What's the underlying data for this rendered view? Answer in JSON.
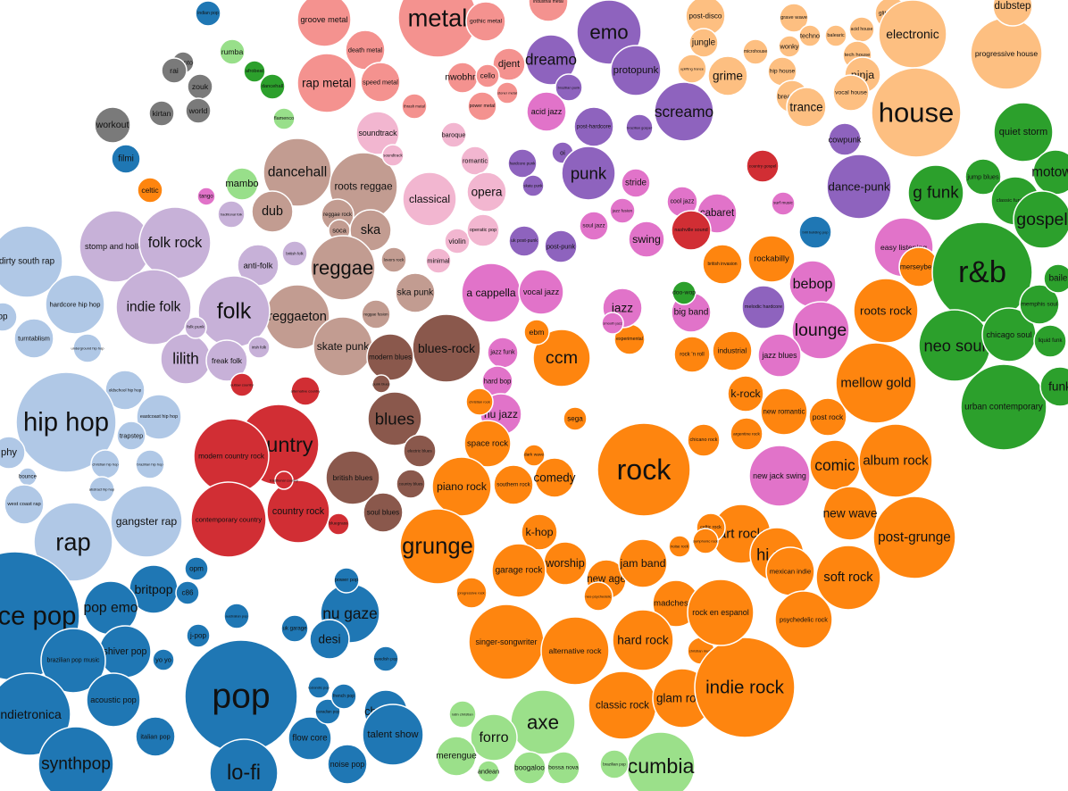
{
  "colors": {
    "metal": "#f4928f",
    "emo_punk": "#8e63be",
    "electronic": "#fdbf81",
    "world": "#7a7a7a",
    "reggae": "#c29c91",
    "soft_pink": "#f2b6d0",
    "magenta": "#e173c9",
    "folk": "#c7b1d8",
    "hiphop": "#b0c8e6",
    "country": "#d12e34",
    "blues": "#8a584c",
    "rock": "#fe850f",
    "rnb": "#2ca02c",
    "pop": "#1f77b4",
    "latin": "#9be08a",
    "ltgreen": "#98df8a"
  },
  "bubbles": [
    {
      "label": "groove metal",
      "g": "metal"
    },
    {
      "label": "metal",
      "g": "metal"
    },
    {
      "label": "gothic metal",
      "g": "metal"
    },
    {
      "label": "industrial metal",
      "g": "metal"
    },
    {
      "label": "death metal",
      "g": "metal"
    },
    {
      "label": "djent",
      "g": "metal"
    },
    {
      "label": "nwobhm",
      "g": "metal"
    },
    {
      "label": "cello",
      "g": "metal"
    },
    {
      "label": "rap metal",
      "g": "metal"
    },
    {
      "label": "speed metal",
      "g": "metal"
    },
    {
      "label": "thrash metal",
      "g": "metal"
    },
    {
      "label": "power metal",
      "g": "metal"
    },
    {
      "label": "stoner metal",
      "g": "metal"
    },
    {
      "label": "emo",
      "g": "emo_punk"
    },
    {
      "label": "dreamo",
      "g": "emo_punk"
    },
    {
      "label": "brazilian punk",
      "g": "emo_punk"
    },
    {
      "label": "protopunk",
      "g": "emo_punk"
    },
    {
      "label": "screamo",
      "g": "emo_punk"
    },
    {
      "label": "acid jazz",
      "g": "magenta"
    },
    {
      "label": "post-hardcore",
      "g": "emo_punk"
    },
    {
      "label": "brazilian gospel",
      "g": "emo_punk"
    },
    {
      "label": "oi",
      "g": "emo_punk"
    },
    {
      "label": "punk",
      "g": "emo_punk"
    },
    {
      "label": "hardcore punk",
      "g": "emo_punk"
    },
    {
      "label": "skate punk",
      "g": "emo_punk"
    },
    {
      "label": "uk post-punk",
      "g": "emo_punk"
    },
    {
      "label": "post-punk",
      "g": "emo_punk"
    },
    {
      "label": "dance-punk",
      "g": "emo_punk"
    },
    {
      "label": "cowpunk",
      "g": "emo_punk"
    },
    {
      "label": "melodic hardcore",
      "g": "emo_punk"
    },
    {
      "label": "post-disco",
      "g": "electronic"
    },
    {
      "label": "jungle",
      "g": "electronic"
    },
    {
      "label": "uplifting trance",
      "g": "electronic"
    },
    {
      "label": "microhouse",
      "g": "electronic"
    },
    {
      "label": "grave wave",
      "g": "electronic"
    },
    {
      "label": "wonky",
      "g": "electronic"
    },
    {
      "label": "techno",
      "g": "electronic"
    },
    {
      "label": "balearic",
      "g": "electronic"
    },
    {
      "label": "acid house",
      "g": "electronic"
    },
    {
      "label": "tech house",
      "g": "electronic"
    },
    {
      "label": "glitch hop",
      "g": "electronic"
    },
    {
      "label": "ninja",
      "g": "electronic"
    },
    {
      "label": "electronic",
      "g": "electronic"
    },
    {
      "label": "progressive house",
      "g": "electronic"
    },
    {
      "label": "grime",
      "g": "electronic"
    },
    {
      "label": "hip house",
      "g": "electronic"
    },
    {
      "label": "breakbeat",
      "g": "electronic"
    },
    {
      "label": "vocal house",
      "g": "electronic"
    },
    {
      "label": "trance",
      "g": "electronic"
    },
    {
      "label": "house",
      "g": "electronic"
    },
    {
      "label": "dubstep",
      "g": "electronic"
    },
    {
      "label": "indian pop",
      "g": "pop"
    },
    {
      "label": "rumba",
      "g": "ltgreen"
    },
    {
      "label": "afrobeat",
      "g": "rnb"
    },
    {
      "label": "dancehall",
      "g": "rnb"
    },
    {
      "label": "flamenco",
      "g": "ltgreen"
    },
    {
      "label": "azonto",
      "g": "world"
    },
    {
      "label": "rai",
      "g": "world"
    },
    {
      "label": "zouk",
      "g": "world"
    },
    {
      "label": "world",
      "g": "world"
    },
    {
      "label": "kirtan",
      "g": "world"
    },
    {
      "label": "workout",
      "g": "world"
    },
    {
      "label": "filmi",
      "g": "pop"
    },
    {
      "label": "celtic",
      "g": "rock"
    },
    {
      "label": "tango",
      "g": "magenta"
    },
    {
      "label": "mambo",
      "g": "ltgreen"
    },
    {
      "label": "soundtrack",
      "g": "soft_pink"
    },
    {
      "label": "baroque",
      "g": "soft_pink"
    },
    {
      "label": "romantic",
      "g": "soft_pink"
    },
    {
      "label": "classical",
      "g": "soft_pink"
    },
    {
      "label": "opera",
      "g": "soft_pink"
    },
    {
      "label": "violin",
      "g": "soft_pink"
    },
    {
      "label": "operatic pop",
      "g": "soft_pink"
    },
    {
      "label": "minimal",
      "g": "soft_pink"
    },
    {
      "label": "dancehall",
      "g": "reggae"
    },
    {
      "label": "roots reggae",
      "g": "reggae"
    },
    {
      "label": "dub",
      "g": "reggae"
    },
    {
      "label": "reggae rock",
      "g": "reggae"
    },
    {
      "label": "soca",
      "g": "reggae"
    },
    {
      "label": "ska",
      "g": "reggae"
    },
    {
      "label": "reggae",
      "g": "reggae"
    },
    {
      "label": "lovers rock",
      "g": "reggae"
    },
    {
      "label": "reggaeton",
      "g": "reggae"
    },
    {
      "label": "ska punk",
      "g": "reggae"
    },
    {
      "label": "reggae fusion",
      "g": "reggae"
    },
    {
      "label": "skate punk",
      "g": "reggae"
    },
    {
      "label": "stomp and holler",
      "g": "folk"
    },
    {
      "label": "folk rock",
      "g": "folk"
    },
    {
      "label": "traditional folk",
      "g": "folk"
    },
    {
      "label": "anti-folk",
      "g": "folk"
    },
    {
      "label": "british folk",
      "g": "folk"
    },
    {
      "label": "indie folk",
      "g": "folk"
    },
    {
      "label": "folk",
      "g": "folk"
    },
    {
      "label": "lilith",
      "g": "folk"
    },
    {
      "label": "freak folk",
      "g": "folk"
    },
    {
      "label": "irish folk",
      "g": "folk"
    },
    {
      "label": "folk punk",
      "g": "folk"
    },
    {
      "label": "dirty south rap",
      "g": "hiphop"
    },
    {
      "label": "hardcore hip hop",
      "g": "hiphop"
    },
    {
      "label": "turntablism",
      "g": "hiphop"
    },
    {
      "label": "underground hip hop",
      "g": "hiphop"
    },
    {
      "label": "oldschool hip hop",
      "g": "hiphop"
    },
    {
      "label": "hip hop",
      "g": "hiphop"
    },
    {
      "label": "eastcoast hip hop",
      "g": "hiphop"
    },
    {
      "label": "trapstep",
      "g": "hiphop"
    },
    {
      "label": "brazilian hip hop",
      "g": "hiphop"
    },
    {
      "label": "christian hip hop",
      "g": "hiphop"
    },
    {
      "label": "abstract hip hop",
      "g": "hiphop"
    },
    {
      "label": "phy",
      "g": "hiphop"
    },
    {
      "label": "bounce",
      "g": "hiphop"
    },
    {
      "label": "west coast rap",
      "g": "hiphop"
    },
    {
      "label": "gangster rap",
      "g": "hiphop"
    },
    {
      "label": "rap",
      "g": "hiphop"
    },
    {
      "label": "op",
      "g": "hiphop"
    },
    {
      "label": "outlaw country",
      "g": "country"
    },
    {
      "label": "alternative country",
      "g": "country"
    },
    {
      "label": "country",
      "g": "country"
    },
    {
      "label": "modern country rock",
      "g": "country"
    },
    {
      "label": "country rock",
      "g": "country"
    },
    {
      "label": "contemporary country",
      "g": "country"
    },
    {
      "label": "bluegrass",
      "g": "country"
    },
    {
      "label": "traditional country",
      "g": "country"
    },
    {
      "label": "blues-rock",
      "g": "blues"
    },
    {
      "label": "modern blues",
      "g": "blues"
    },
    {
      "label": "blues",
      "g": "blues"
    },
    {
      "label": "british blues",
      "g": "blues"
    },
    {
      "label": "soul blues",
      "g": "blues"
    },
    {
      "label": "electric blues",
      "g": "blues"
    },
    {
      "label": "country blues",
      "g": "blues"
    },
    {
      "label": "punk blues",
      "g": "blues"
    },
    {
      "label": "ccm",
      "g": "rock"
    },
    {
      "label": "ebm",
      "g": "rock"
    },
    {
      "label": "experimental",
      "g": "rock"
    },
    {
      "label": "rock 'n roll",
      "g": "rock"
    },
    {
      "label": "industrial",
      "g": "rock"
    },
    {
      "label": "jazz funk",
      "g": "magenta"
    },
    {
      "label": "hard bop",
      "g": "magenta"
    },
    {
      "label": "nu jazz",
      "g": "magenta"
    },
    {
      "label": "christian rock",
      "g": "rock"
    },
    {
      "label": "sega",
      "g": "rock"
    },
    {
      "label": "k-rock",
      "g": "rock"
    },
    {
      "label": "new romantic",
      "g": "rock"
    },
    {
      "label": "post rock",
      "g": "rock"
    },
    {
      "label": "argentine rock",
      "g": "rock"
    },
    {
      "label": "rock",
      "g": "rock"
    },
    {
      "label": "space rock",
      "g": "rock"
    },
    {
      "label": "dark wave",
      "g": "rock"
    },
    {
      "label": "comedy",
      "g": "rock"
    },
    {
      "label": "piano rock",
      "g": "rock"
    },
    {
      "label": "southern rock",
      "g": "rock"
    },
    {
      "label": "grunge",
      "g": "rock"
    },
    {
      "label": "k-hop",
      "g": "rock"
    },
    {
      "label": "worship",
      "g": "rock"
    },
    {
      "label": "new age",
      "g": "rock"
    },
    {
      "label": "jam band",
      "g": "rock"
    },
    {
      "label": "garage rock",
      "g": "rock"
    },
    {
      "label": "progressive rock",
      "g": "rock"
    },
    {
      "label": "neo-psychedelic",
      "g": "rock"
    },
    {
      "label": "madchester",
      "g": "rock"
    },
    {
      "label": "singer-songwriter",
      "g": "rock"
    },
    {
      "label": "alternative rock",
      "g": "rock"
    },
    {
      "label": "hard rock",
      "g": "rock"
    },
    {
      "label": "christian music",
      "g": "rock"
    },
    {
      "label": "classic rock",
      "g": "rock"
    },
    {
      "label": "glam rock",
      "g": "rock"
    },
    {
      "label": "indie rock",
      "g": "rock"
    },
    {
      "label": "mellow gold",
      "g": "rock"
    },
    {
      "label": "comic",
      "g": "rock"
    },
    {
      "label": "album rock",
      "g": "rock"
    },
    {
      "label": "new wave",
      "g": "rock"
    },
    {
      "label": "post-grunge",
      "g": "rock"
    },
    {
      "label": "art rock",
      "g": "rock"
    },
    {
      "label": "hi nrg",
      "g": "rock"
    },
    {
      "label": "soft rock",
      "g": "rock"
    },
    {
      "label": "mexican indie",
      "g": "rock"
    },
    {
      "label": "rock en espanol",
      "g": "rock"
    },
    {
      "label": "psychedelic rock",
      "g": "rock"
    },
    {
      "label": "roots rock",
      "g": "rock"
    },
    {
      "label": "new jack swing",
      "g": "magenta"
    },
    {
      "label": "celtic rock",
      "g": "rock"
    },
    {
      "label": "noise rock",
      "g": "rock"
    },
    {
      "label": "symphonic rock",
      "g": "rock"
    },
    {
      "label": "chicano rock",
      "g": "rock"
    },
    {
      "label": "soundtrack",
      "g": "soft_pink"
    },
    {
      "label": "stride",
      "g": "magenta"
    },
    {
      "label": "cool jazz",
      "g": "magenta"
    },
    {
      "label": "jazz fusion",
      "g": "magenta"
    },
    {
      "label": "swing",
      "g": "magenta"
    },
    {
      "label": "soul jazz",
      "g": "magenta"
    },
    {
      "label": "a cappella",
      "g": "magenta"
    },
    {
      "label": "vocal jazz",
      "g": "magenta"
    },
    {
      "label": "jazz",
      "g": "magenta"
    },
    {
      "label": "smooth jazz",
      "g": "magenta"
    },
    {
      "label": "cabaret",
      "g": "magenta"
    },
    {
      "label": "rockabilly",
      "g": "rock"
    },
    {
      "label": "british invasion",
      "g": "rock"
    },
    {
      "label": "easy listening",
      "g": "magenta"
    },
    {
      "label": "bebop",
      "g": "magenta"
    },
    {
      "label": "lounge",
      "g": "magenta"
    },
    {
      "label": "jazz blues",
      "g": "magenta"
    },
    {
      "label": "big band",
      "g": "magenta"
    },
    {
      "label": "doo-wop",
      "g": "rnb"
    },
    {
      "label": "surf music",
      "g": "magenta"
    },
    {
      "label": "brill building pop",
      "g": "pop"
    },
    {
      "label": "merseybeat",
      "g": "rock"
    },
    {
      "label": "country gospel",
      "g": "country"
    },
    {
      "label": "nashville sound",
      "g": "country"
    },
    {
      "label": "quiet storm",
      "g": "rnb"
    },
    {
      "label": "g funk",
      "g": "rnb"
    },
    {
      "label": "jump blues",
      "g": "rnb"
    },
    {
      "label": "classic funk rock",
      "g": "rnb"
    },
    {
      "label": "motown",
      "g": "rnb"
    },
    {
      "label": "r&b",
      "g": "rnb"
    },
    {
      "label": "gospel",
      "g": "rnb"
    },
    {
      "label": "neo soul",
      "g": "rnb"
    },
    {
      "label": "chicago soul",
      "g": "rnb"
    },
    {
      "label": "memphis soul",
      "g": "rnb"
    },
    {
      "label": "liquid funk",
      "g": "rnb"
    },
    {
      "label": "urban contemporary",
      "g": "rnb"
    },
    {
      "label": "funk",
      "g": "rnb"
    },
    {
      "label": "baile",
      "g": "rnb"
    },
    {
      "label": "dance pop",
      "g": "pop"
    },
    {
      "label": "britpop",
      "g": "pop"
    },
    {
      "label": "opm",
      "g": "pop"
    },
    {
      "label": "pop emo",
      "g": "pop"
    },
    {
      "label": "c86",
      "g": "pop"
    },
    {
      "label": "j-pop",
      "g": "pop"
    },
    {
      "label": "nu gaze",
      "g": "pop"
    },
    {
      "label": "desi",
      "g": "pop"
    },
    {
      "label": "uk garage",
      "g": "pop"
    },
    {
      "label": "shiver pop",
      "g": "pop"
    },
    {
      "label": "brazilian pop music",
      "g": "pop"
    },
    {
      "label": "yo yo",
      "g": "pop"
    },
    {
      "label": "pop",
      "g": "pop"
    },
    {
      "label": "indietronica",
      "g": "pop"
    },
    {
      "label": "acoustic pop",
      "g": "pop"
    },
    {
      "label": "chanson",
      "g": "pop"
    },
    {
      "label": "talent show",
      "g": "pop"
    },
    {
      "label": "synthpop",
      "g": "pop"
    },
    {
      "label": "italian pop",
      "g": "pop"
    },
    {
      "label": "flow core",
      "g": "pop"
    },
    {
      "label": "noise pop",
      "g": "pop"
    },
    {
      "label": "lo-fi",
      "g": "pop"
    },
    {
      "label": "canadian pop",
      "g": "pop"
    },
    {
      "label": "swedish pop",
      "g": "pop"
    },
    {
      "label": "french pop",
      "g": "pop"
    },
    {
      "label": "power pop",
      "g": "pop"
    },
    {
      "label": "australian pop",
      "g": "pop"
    },
    {
      "label": "icelandic pop",
      "g": "pop"
    },
    {
      "label": "axe",
      "g": "latin"
    },
    {
      "label": "forro",
      "g": "latin"
    },
    {
      "label": "merengue",
      "g": "latin"
    },
    {
      "label": "latin christian",
      "g": "latin"
    },
    {
      "label": "cumbia",
      "g": "latin"
    },
    {
      "label": "bossa nova",
      "g": "latin"
    },
    {
      "label": "boogaloo",
      "g": "latin"
    },
    {
      "label": "andean",
      "g": "latin"
    },
    {
      "label": "brazilian pop",
      "g": "latin"
    }
  ]
}
